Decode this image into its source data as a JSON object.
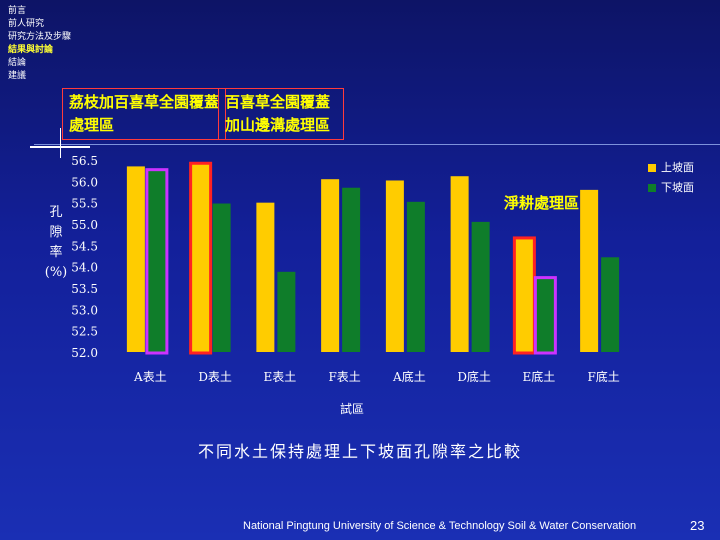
{
  "nav": {
    "items": [
      {
        "label": "前言",
        "active": false
      },
      {
        "label": "前人研究",
        "active": false
      },
      {
        "label": "研究方法及步驟",
        "active": false
      },
      {
        "label": "結果與討論",
        "active": true
      },
      {
        "label": "結論",
        "active": false
      },
      {
        "label": "建議",
        "active": false
      }
    ]
  },
  "callouts": {
    "a": "荔枝加百喜草全園覆蓋處理區",
    "b": "百喜草全園覆蓋加山邊溝處理區",
    "c": "淨耕處理區"
  },
  "caption": "不同水土保持處理上下坡面孔隙率之比較",
  "footer": "National Pingtung University of Science & Technology   Soil & Water Conservation",
  "page_number": "23",
  "colors": {
    "upper": "#ffcc00",
    "lower": "#0f7d2a",
    "highlight_red": "#ff2222",
    "highlight_magenta": "#cc33ff",
    "background": "#13209a"
  },
  "chart_data": {
    "type": "bar",
    "title": "",
    "xlabel": "試區",
    "ylabel": "孔隙率(%)",
    "ylabel_chars": [
      "孔",
      "隙",
      "率",
      "(%)"
    ],
    "ylim": [
      52.0,
      56.5
    ],
    "yticks": [
      "52.0",
      "52.5",
      "53.0",
      "53.5",
      "54.0",
      "54.5",
      "55.0",
      "55.5",
      "56.0",
      "56.5"
    ],
    "categories": [
      "A表土",
      "D表土",
      "E表土",
      "F表土",
      "A底土",
      "D底土",
      "E底土",
      "F底土"
    ],
    "series": [
      {
        "name": "上坡面",
        "color": "#ffcc00",
        "values": [
          56.35,
          56.4,
          55.5,
          56.05,
          56.02,
          56.12,
          54.65,
          55.8
        ]
      },
      {
        "name": "下坡面",
        "color": "#0f7d2a",
        "values": [
          56.25,
          55.48,
          53.88,
          55.85,
          55.52,
          55.05,
          53.72,
          54.22
        ]
      }
    ],
    "highlights": [
      {
        "category": "A表土",
        "series": "下坡面",
        "color": "#cc33ff"
      },
      {
        "category": "D表土",
        "series": "上坡面",
        "color": "#ff2222"
      },
      {
        "category": "E底土",
        "series": "上坡面",
        "color": "#ff2222"
      },
      {
        "category": "E底土",
        "series": "下坡面",
        "color": "#cc33ff"
      }
    ],
    "legend_position": "top-right",
    "grid": false
  }
}
